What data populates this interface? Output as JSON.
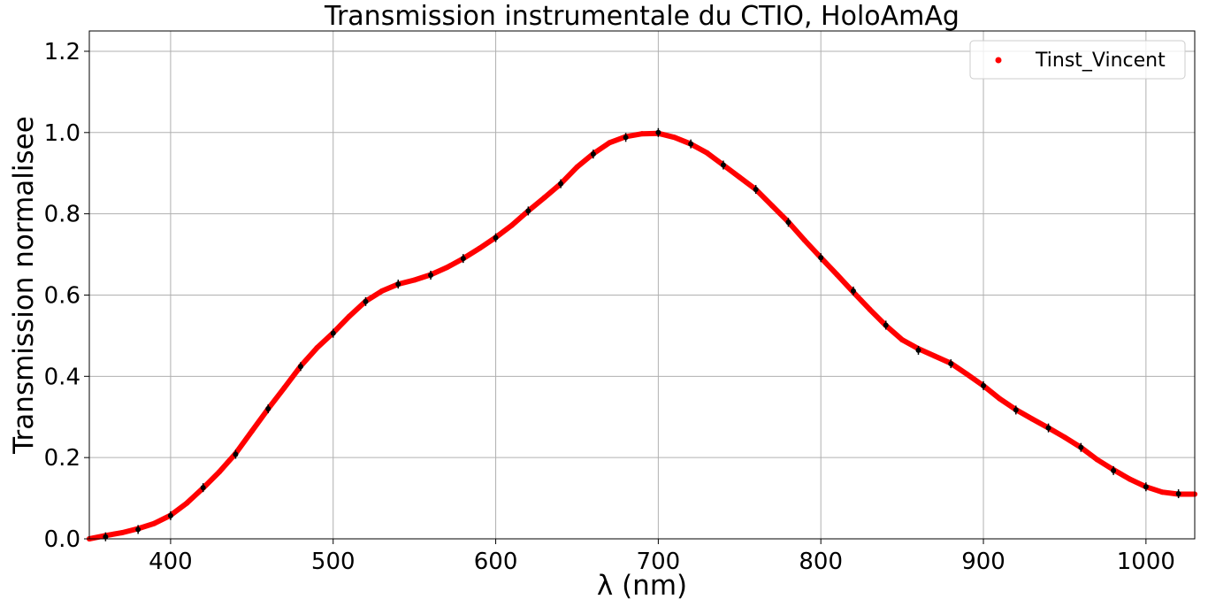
{
  "chart_data": {
    "type": "scatter",
    "title": "Transmission instrumentale du CTIO, HoloAmAg",
    "xlabel": "λ (nm)",
    "ylabel": "Transmission normalisee",
    "xlim": [
      350,
      1030
    ],
    "ylim": [
      0,
      1.25
    ],
    "xticks": [
      "400",
      "500",
      "600",
      "700",
      "800",
      "900",
      "1000"
    ],
    "xtick_values": [
      400,
      500,
      600,
      700,
      800,
      900,
      1000
    ],
    "yticks": [
      "0.0",
      "0.2",
      "0.4",
      "0.6",
      "0.8",
      "1.0",
      "1.2"
    ],
    "ytick_values": [
      0.0,
      0.2,
      0.4,
      0.6,
      0.8,
      1.0,
      1.2
    ],
    "grid": true,
    "legend_position": "top-right",
    "colors": {
      "curve": "#ff0000",
      "markers": "#000000",
      "grid": "#b0b0b0"
    },
    "series": [
      {
        "name": "Tinst_Vincent",
        "kind": "dense scatter",
        "color": "#ff0000",
        "x": [
          350,
          360,
          370,
          380,
          390,
          400,
          410,
          420,
          430,
          440,
          450,
          460,
          470,
          480,
          490,
          500,
          510,
          520,
          530,
          540,
          550,
          560,
          570,
          580,
          590,
          600,
          610,
          620,
          630,
          640,
          650,
          660,
          670,
          680,
          690,
          700,
          710,
          720,
          730,
          740,
          750,
          760,
          770,
          780,
          790,
          800,
          810,
          820,
          830,
          840,
          850,
          860,
          870,
          880,
          890,
          900,
          910,
          920,
          930,
          940,
          950,
          960,
          970,
          980,
          990,
          1000,
          1010,
          1020,
          1030
        ],
        "y": [
          0.0,
          0.008,
          0.015,
          0.025,
          0.038,
          0.058,
          0.088,
          0.125,
          0.165,
          0.21,
          0.265,
          0.32,
          0.372,
          0.425,
          0.47,
          0.507,
          0.548,
          0.585,
          0.61,
          0.627,
          0.637,
          0.65,
          0.668,
          0.69,
          0.715,
          0.742,
          0.772,
          0.807,
          0.84,
          0.874,
          0.915,
          0.948,
          0.975,
          0.99,
          0.997,
          0.998,
          0.988,
          0.972,
          0.95,
          0.92,
          0.89,
          0.86,
          0.82,
          0.78,
          0.735,
          0.692,
          0.65,
          0.607,
          0.565,
          0.525,
          0.49,
          0.468,
          0.45,
          0.432,
          0.405,
          0.377,
          0.345,
          0.318,
          0.295,
          0.273,
          0.25,
          0.225,
          0.195,
          0.17,
          0.147,
          0.128,
          0.115,
          0.11,
          0.11
        ]
      },
      {
        "kind": "points",
        "color": "#000000",
        "x": [
          360,
          380,
          400,
          420,
          440,
          460,
          480,
          500,
          520,
          540,
          560,
          580,
          600,
          620,
          640,
          660,
          680,
          700,
          720,
          740,
          760,
          780,
          800,
          820,
          840,
          860,
          880,
          900,
          920,
          940,
          960,
          980,
          1000,
          1020
        ],
        "y": [
          0.005,
          0.023,
          0.057,
          0.126,
          0.208,
          0.32,
          0.424,
          0.506,
          0.584,
          0.627,
          0.649,
          0.69,
          0.741,
          0.807,
          0.874,
          0.947,
          0.988,
          1.0,
          0.972,
          0.92,
          0.86,
          0.779,
          0.692,
          0.61,
          0.526,
          0.464,
          0.431,
          0.377,
          0.317,
          0.273,
          0.225,
          0.168,
          0.128,
          0.111
        ]
      }
    ]
  }
}
